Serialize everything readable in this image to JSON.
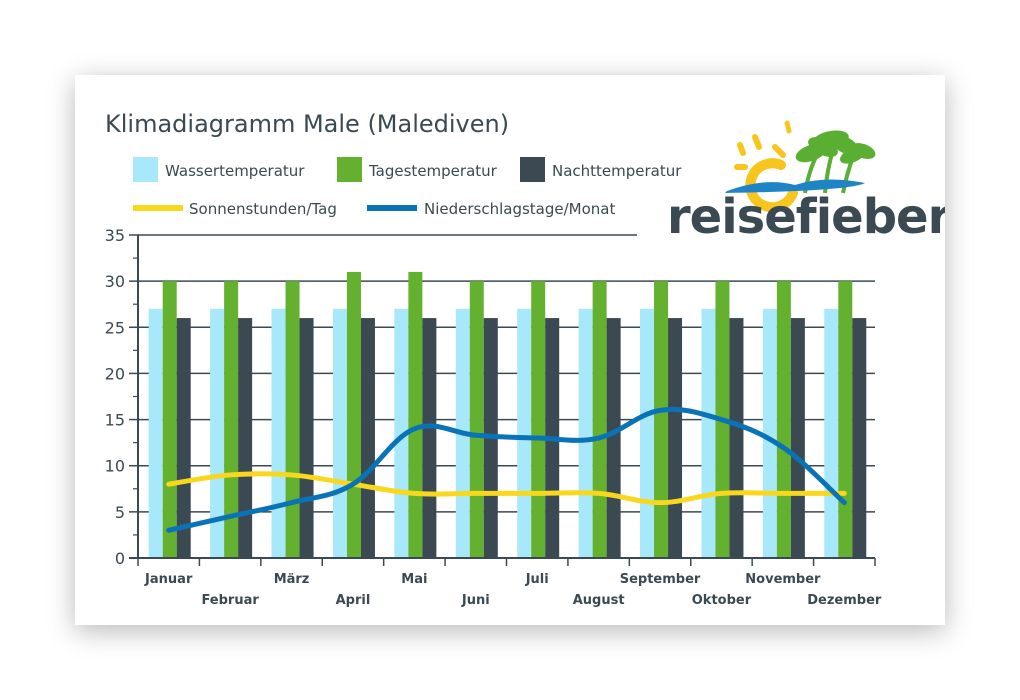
{
  "chart_data": {
    "type": "bar",
    "title": "Klimadiagramm Male (Malediven)",
    "categories": [
      "Januar",
      "Februar",
      "März",
      "April",
      "Mai",
      "Juni",
      "Juli",
      "August",
      "September",
      "Oktober",
      "November",
      "Dezember"
    ],
    "series": [
      {
        "name": "Wassertemperatur",
        "kind": "bar",
        "color": "#a8e8fb",
        "values": [
          27,
          27,
          27,
          27,
          27,
          27,
          27,
          27,
          27,
          27,
          27,
          27
        ]
      },
      {
        "name": "Tagestemperatur",
        "kind": "bar",
        "color": "#63b12f",
        "values": [
          30,
          30,
          30,
          31,
          31,
          30,
          30,
          30,
          30,
          30,
          30,
          30
        ]
      },
      {
        "name": "Nachttemperatur",
        "kind": "bar",
        "color": "#3b4a52",
        "values": [
          26,
          26,
          26,
          26,
          26,
          26,
          26,
          26,
          26,
          26,
          26,
          26
        ]
      },
      {
        "name": "Sonnenstunden/Tag",
        "kind": "line",
        "color": "#f9d71c",
        "values": [
          8,
          9,
          9,
          8,
          7,
          7,
          7,
          7,
          6,
          7,
          7,
          7
        ]
      },
      {
        "name": "Niederschlagstage/Monat",
        "kind": "line",
        "color": "#0a73b8",
        "values": [
          3,
          4.5,
          6,
          8,
          14,
          13.3,
          13,
          13,
          16,
          15,
          12,
          6
        ]
      }
    ],
    "ylim": [
      0,
      35
    ],
    "yticks": [
      0,
      5,
      10,
      15,
      20,
      25,
      30,
      35
    ],
    "grid": true,
    "legend_position": "top-left"
  },
  "logo": {
    "text": "reisefieber",
    "colors": {
      "sun": "#f7c51e",
      "palm": "#5aae32",
      "wave": "#1f84c6",
      "text": "#3b4a52"
    }
  }
}
